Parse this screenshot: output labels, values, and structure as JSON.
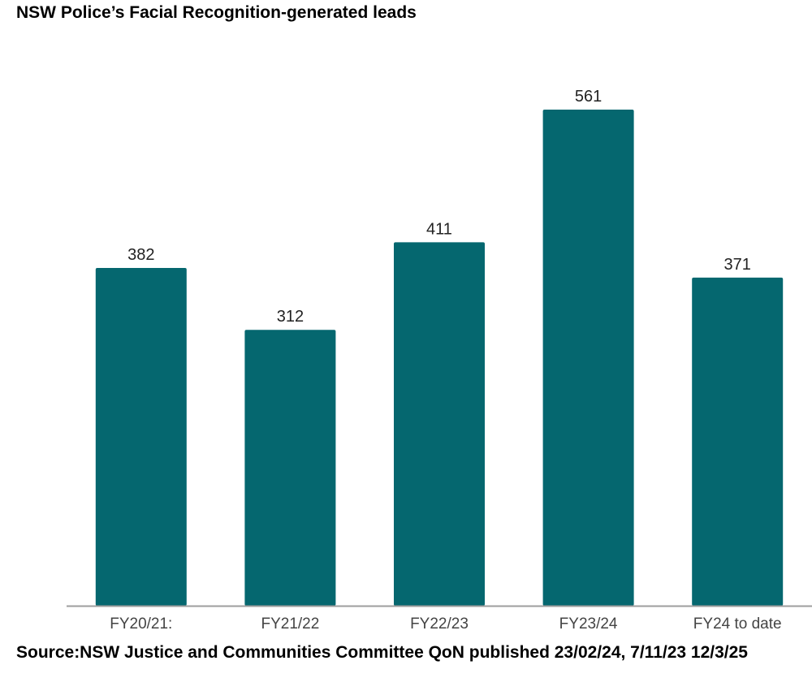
{
  "chart_data": {
    "type": "bar",
    "title": "NSW Police’s Facial Recognition-generated leads",
    "categories": [
      "FY20/21:",
      "FY21/22",
      "FY22/23",
      "FY23/24",
      "FY24 to date"
    ],
    "values": [
      382,
      312,
      411,
      561,
      371
    ],
    "data_labels": [
      "382",
      "312",
      "411",
      "561",
      "371"
    ],
    "xlabel": "",
    "ylabel": "",
    "ylim": [
      0,
      561
    ],
    "grid": false,
    "legend": "none",
    "bar_color": "#05676f",
    "axis_color": "#9e9e9e",
    "label_color": "#222222",
    "tick_color": "#444444"
  },
  "source": "Source:NSW Justice and Communities Committee QoN published 23/02/24, 7/11/23 12/3/25"
}
